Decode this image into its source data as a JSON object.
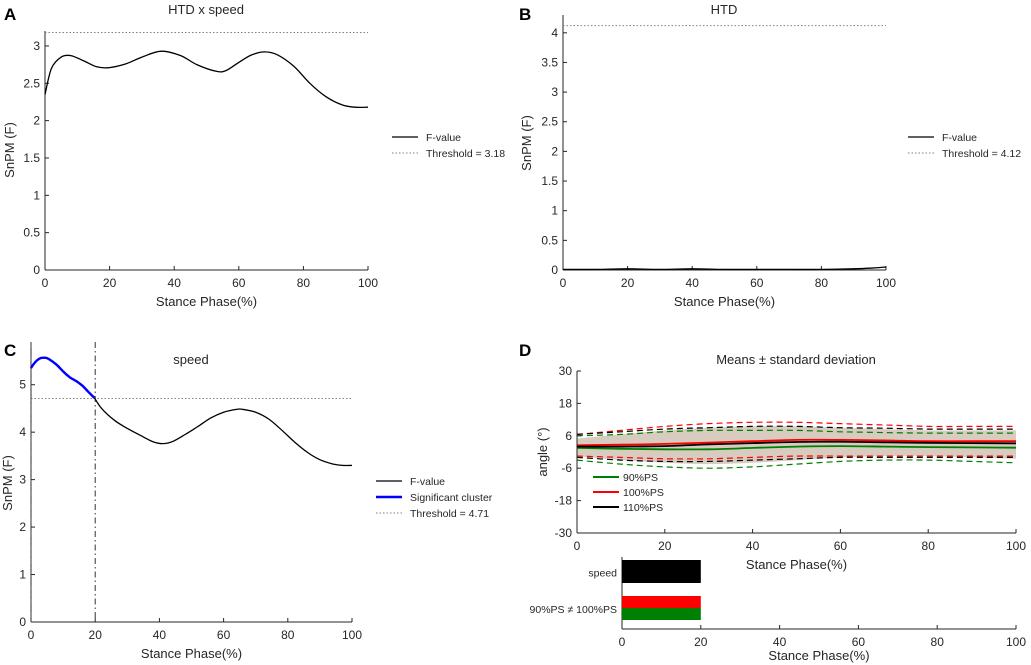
{
  "chart_data": [
    {
      "panel": "A",
      "type": "line",
      "title": "HTD x speed",
      "xlabel": "Stance Phase(%)",
      "ylabel": "SnPM (F)",
      "xlim": [
        0,
        100
      ],
      "ylim": [
        0,
        3.2
      ],
      "xticks": [
        "0",
        "20",
        "40",
        "60",
        "80",
        "100"
      ],
      "yticks": [
        "0",
        "0.5",
        "1",
        "1.5",
        "2",
        "2.5",
        "3"
      ],
      "series": [
        {
          "name": "F-value",
          "color": "#000000",
          "x": [
            0,
            2,
            5,
            8,
            12,
            16,
            20,
            25,
            30,
            36,
            42,
            47,
            53,
            56,
            60,
            64,
            68,
            72,
            77,
            82,
            87,
            92,
            96,
            100
          ],
          "y": [
            2.35,
            2.7,
            2.85,
            2.87,
            2.8,
            2.72,
            2.71,
            2.76,
            2.85,
            2.93,
            2.87,
            2.75,
            2.66,
            2.67,
            2.78,
            2.88,
            2.92,
            2.88,
            2.73,
            2.5,
            2.32,
            2.21,
            2.18,
            2.18
          ]
        }
      ],
      "threshold": {
        "label": "Threshold = 3.18",
        "value": 3.18,
        "color": "#808080"
      },
      "legend": [
        "F-value",
        "Threshold = 3.18"
      ]
    },
    {
      "panel": "B",
      "type": "line",
      "title": "HTD",
      "xlabel": "Stance Phase(%)",
      "ylabel": "SnPM (F)",
      "xlim": [
        0,
        100
      ],
      "ylim": [
        0,
        4.3
      ],
      "xticks": [
        "0",
        "20",
        "40",
        "60",
        "80",
        "100"
      ],
      "yticks": [
        "0",
        "0.5",
        "1",
        "1.5",
        "2",
        "2.5",
        "3",
        "3.5",
        "4"
      ],
      "series": [
        {
          "name": "F-value",
          "color": "#000000",
          "x": [
            0,
            10,
            20,
            30,
            40,
            50,
            60,
            70,
            80,
            90,
            95,
            100
          ],
          "y": [
            0.01,
            0.01,
            0.02,
            0.01,
            0.02,
            0.01,
            0.01,
            0.01,
            0.01,
            0.02,
            0.03,
            0.05
          ]
        }
      ],
      "threshold": {
        "label": "Threshold = 4.12",
        "value": 4.12,
        "color": "#808080"
      },
      "legend": [
        "F-value",
        "Threshold = 4.12"
      ]
    },
    {
      "panel": "C",
      "type": "line",
      "title": "speed",
      "xlabel": "Stance Phase(%)",
      "ylabel": "SnPM (F)",
      "xlim": [
        0,
        100
      ],
      "ylim": [
        0,
        5.9
      ],
      "xticks": [
        "0",
        "20",
        "40",
        "60",
        "80",
        "100"
      ],
      "yticks": [
        "0",
        "1",
        "2",
        "3",
        "4",
        "5"
      ],
      "series": [
        {
          "name": "F-value",
          "color": "#000000",
          "x": [
            19.8,
            22,
            26,
            30,
            35,
            38,
            41,
            44,
            48,
            52,
            56,
            60,
            64,
            66,
            70,
            74,
            78,
            82,
            86,
            90,
            94,
            97,
            100
          ],
          "y": [
            4.72,
            4.5,
            4.25,
            4.08,
            3.9,
            3.8,
            3.76,
            3.8,
            3.95,
            4.12,
            4.3,
            4.42,
            4.48,
            4.48,
            4.42,
            4.28,
            4.05,
            3.8,
            3.58,
            3.42,
            3.33,
            3.3,
            3.3
          ]
        },
        {
          "name": "Significant cluster",
          "color": "#0000ff",
          "x": [
            0,
            1,
            2,
            3,
            4,
            5,
            6,
            8,
            10,
            12,
            14,
            16,
            18,
            19.8
          ],
          "y": [
            5.35,
            5.45,
            5.52,
            5.56,
            5.57,
            5.56,
            5.52,
            5.42,
            5.28,
            5.16,
            5.08,
            4.98,
            4.84,
            4.72
          ]
        }
      ],
      "threshold": {
        "label": "Threshold = 4.71",
        "value": 4.71,
        "color": "#808080"
      },
      "cluster_bounds": [
        0,
        20
      ],
      "legend": [
        "F-value",
        "Significant cluster",
        "Threshold = 4.71"
      ]
    },
    {
      "panel": "D",
      "type": "line",
      "title": "Means ± standard deviation",
      "xlabel": "Stance Phase(%)",
      "ylabel": "angle (°)",
      "xlim": [
        0,
        100
      ],
      "ylim": [
        -30,
        30
      ],
      "xticks": [
        "0",
        "20",
        "40",
        "60",
        "80",
        "100"
      ],
      "yticks": [
        "-30",
        "-18",
        "-6",
        "6",
        "18",
        "30"
      ],
      "x": [
        0,
        10,
        20,
        30,
        40,
        50,
        60,
        70,
        80,
        90,
        100
      ],
      "series": [
        {
          "name": "90%PS",
          "color": "#008000",
          "mean": [
            1.5,
            1.2,
            1.0,
            1.0,
            1.5,
            2.0,
            2.2,
            2.0,
            1.8,
            1.7,
            1.6
          ],
          "upper": [
            6.0,
            6.5,
            7.5,
            8.0,
            8.0,
            8.0,
            7.5,
            7.2,
            7.0,
            7.0,
            7.0
          ],
          "lower": [
            -3.0,
            -4.5,
            -5.5,
            -6.0,
            -5.5,
            -4.5,
            -3.5,
            -3.0,
            -3.0,
            -3.5,
            -4.0
          ]
        },
        {
          "name": "100%PS",
          "color": "#ff0000",
          "mean": [
            2.5,
            2.7,
            3.0,
            3.5,
            4.0,
            4.5,
            4.5,
            4.3,
            4.0,
            4.0,
            4.0
          ],
          "upper": [
            6.5,
            8.0,
            9.5,
            10.5,
            11.0,
            11.0,
            10.5,
            10.0,
            9.5,
            9.5,
            9.5
          ],
          "lower": [
            -1.5,
            -2.0,
            -2.5,
            -2.5,
            -2.0,
            -1.5,
            -1.5,
            -1.5,
            -1.5,
            -1.5,
            -1.5
          ]
        },
        {
          "name": "110%PS",
          "color": "#000000",
          "mean": [
            2.0,
            2.0,
            2.2,
            2.8,
            3.3,
            3.7,
            3.8,
            3.6,
            3.4,
            3.3,
            3.2
          ],
          "upper": [
            6.5,
            7.5,
            8.5,
            9.0,
            9.5,
            9.5,
            9.0,
            8.8,
            8.5,
            8.5,
            8.5
          ],
          "lower": [
            -2.0,
            -3.0,
            -3.5,
            -3.5,
            -3.0,
            -2.5,
            -2.0,
            -2.0,
            -2.0,
            -2.0,
            -2.0
          ]
        }
      ],
      "legend": [
        "90%PS",
        "100%PS",
        "110%PS"
      ]
    },
    {
      "panel": "D-lower",
      "type": "bar",
      "xlabel": "Stance Phase(%)",
      "xlim": [
        0,
        100
      ],
      "xticks": [
        "0",
        "20",
        "40",
        "60",
        "80",
        "100"
      ],
      "rows": [
        {
          "label": "speed",
          "start": 0,
          "end": 20,
          "colors": [
            "#000000"
          ]
        },
        {
          "label": "90%PS ≠ 100%PS",
          "start": 0,
          "end": 20,
          "colors": [
            "#ff0000",
            "#008000"
          ]
        }
      ]
    }
  ]
}
